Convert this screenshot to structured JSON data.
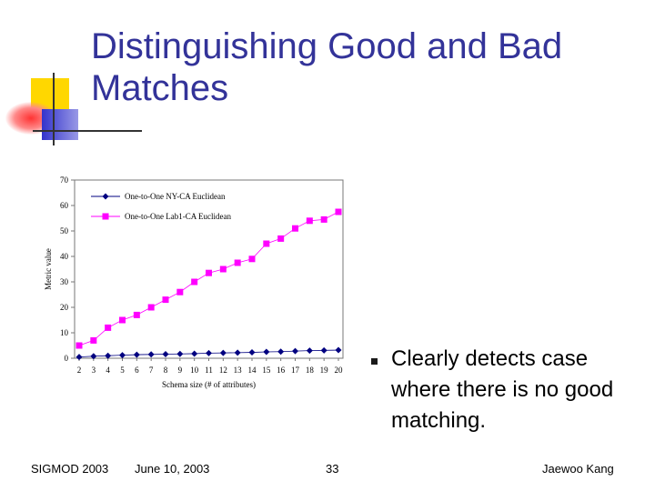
{
  "slide": {
    "title_line1": "Distinguishing Good and Bad",
    "title_line2": "Matches",
    "bullet": "Clearly detects case where there is no good matching.",
    "footer_left": "SIGMOD 2003",
    "footer_date": "June 10, 2003",
    "footer_page": "33",
    "footer_right": "Jaewoo Kang"
  },
  "colors": {
    "title": "#333399",
    "series_nyca": "#000080",
    "series_lab1ca": "#ff00ff",
    "deco_yellow": "#ffd700",
    "deco_red": "#ff3333",
    "deco_blue": "#3333cc"
  },
  "chart_data": {
    "type": "line",
    "xlabel": "Schema size (# of attributes)",
    "ylabel": "Metric value",
    "x": [
      2,
      3,
      4,
      5,
      6,
      7,
      8,
      9,
      10,
      11,
      12,
      13,
      14,
      15,
      16,
      17,
      18,
      19,
      20
    ],
    "ylim": [
      0,
      70
    ],
    "yticks": [
      0,
      10,
      20,
      30,
      40,
      50,
      60,
      70
    ],
    "legend_position": "top-left",
    "grid": false,
    "series": [
      {
        "name": "One-to-One NY-CA Euclidean",
        "marker": "diamond",
        "values": [
          0.5,
          0.8,
          1.0,
          1.2,
          1.4,
          1.5,
          1.6,
          1.7,
          1.8,
          2.0,
          2.1,
          2.2,
          2.3,
          2.5,
          2.6,
          2.8,
          3.0,
          3.1,
          3.2
        ]
      },
      {
        "name": "One-to-One Lab1-CA Euclidean",
        "marker": "square",
        "values": [
          5.0,
          7.0,
          12.0,
          15.0,
          17.0,
          20.0,
          23.0,
          26.0,
          30.0,
          33.5,
          35.0,
          37.5,
          39.0,
          45.0,
          47.0,
          51.0,
          54.0,
          54.5,
          57.5
        ]
      }
    ]
  }
}
